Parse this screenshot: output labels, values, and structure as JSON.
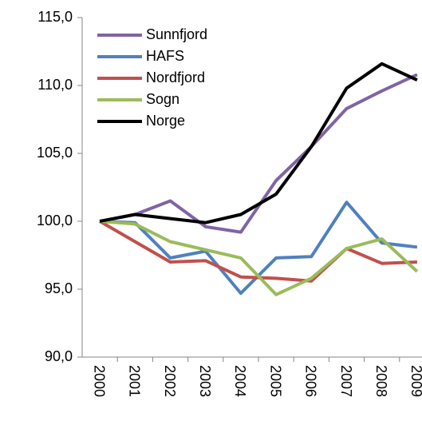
{
  "chart_data": {
    "type": "line",
    "categories": [
      "2000",
      "2001",
      "2002",
      "2003",
      "2004",
      "2005",
      "2006",
      "2007",
      "2008",
      "2009"
    ],
    "series": [
      {
        "name": "Sunnfjord",
        "color": "#8064a2",
        "values": [
          100,
          100.5,
          101.5,
          99.6,
          99.2,
          103.0,
          105.5,
          108.3,
          109.6,
          110.8
        ]
      },
      {
        "name": "HAFS",
        "color": "#4f81bd",
        "values": [
          100,
          99.9,
          97.3,
          97.8,
          94.7,
          97.3,
          97.4,
          101.4,
          98.4,
          98.1
        ]
      },
      {
        "name": "Nordfjord",
        "color": "#c0504d",
        "values": [
          100,
          98.5,
          97.0,
          97.1,
          95.9,
          95.8,
          95.6,
          98.0,
          96.9,
          97.0
        ]
      },
      {
        "name": "Sogn",
        "color": "#9bbb59",
        "values": [
          100,
          99.8,
          98.5,
          97.9,
          97.3,
          94.6,
          95.8,
          98.0,
          98.7,
          96.3
        ]
      },
      {
        "name": "Norge",
        "color": "#000000",
        "values": [
          100,
          100.5,
          100.2,
          99.9,
          100.5,
          102.0,
          105.5,
          109.8,
          111.6,
          110.4
        ]
      }
    ],
    "ylim": [
      90,
      115
    ],
    "yticks": [
      {
        "value": 90,
        "label": "90,0"
      },
      {
        "value": 95,
        "label": "95,0"
      },
      {
        "value": 100,
        "label": "100,0"
      },
      {
        "value": 105,
        "label": "105,0"
      },
      {
        "value": 110,
        "label": "110,0"
      },
      {
        "value": 115,
        "label": "115,0"
      }
    ],
    "legend": "upper left"
  }
}
